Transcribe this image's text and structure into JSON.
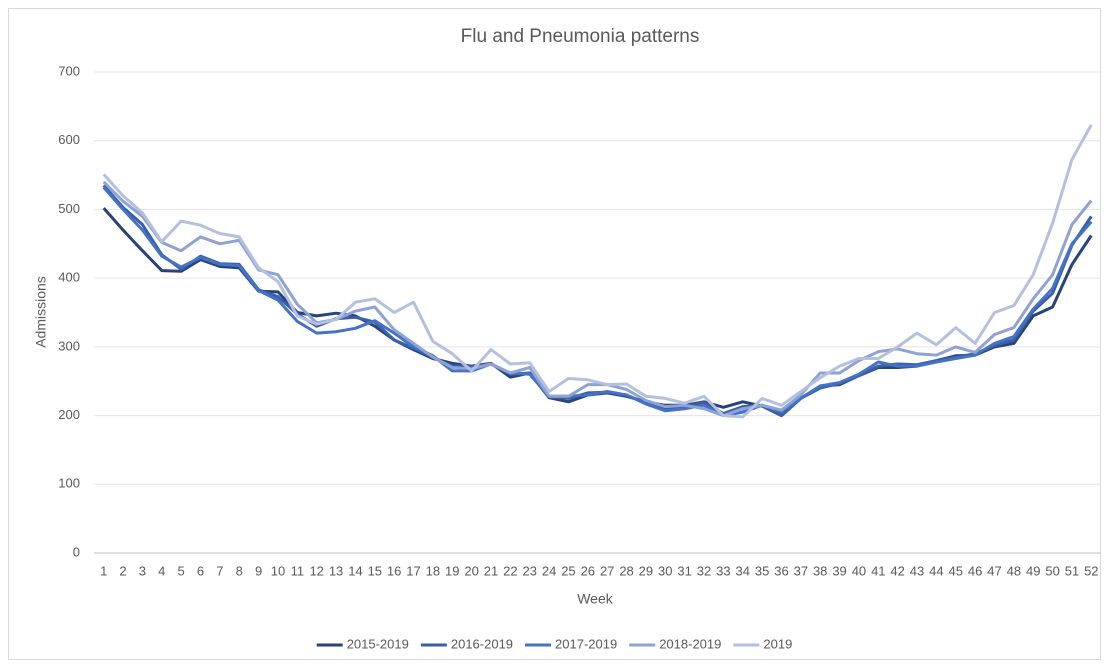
{
  "chart_data": {
    "type": "line",
    "title": "Flu and Pneumonia patterns",
    "x_label": "Week",
    "y_label": "Admissions",
    "categories": [
      1,
      2,
      3,
      4,
      5,
      6,
      7,
      8,
      9,
      10,
      11,
      12,
      13,
      14,
      15,
      16,
      17,
      18,
      19,
      20,
      21,
      22,
      23,
      24,
      25,
      26,
      27,
      28,
      29,
      30,
      31,
      32,
      33,
      34,
      35,
      36,
      37,
      38,
      39,
      40,
      41,
      42,
      43,
      44,
      45,
      46,
      47,
      48,
      49,
      50,
      51,
      52
    ],
    "ylim": [
      0,
      700
    ],
    "yticks": [
      0,
      100,
      200,
      300,
      400,
      500,
      600,
      700
    ],
    "grid": true,
    "legend": "bottom",
    "series": [
      {
        "name": "2015-2019",
        "color": "#264478",
        "values": [
          502,
          470,
          440,
          411,
          410,
          427,
          417,
          415,
          381,
          380,
          350,
          345,
          349,
          345,
          330,
          310,
          296,
          283,
          276,
          272,
          276,
          256,
          262,
          226,
          220,
          230,
          233,
          228,
          220,
          215,
          215,
          220,
          212,
          220,
          214,
          200,
          225,
          243,
          245,
          258,
          270,
          270,
          272,
          280,
          287,
          288,
          300,
          305,
          345,
          358,
          420,
          462
        ]
      },
      {
        "name": "2016-2019",
        "color": "#3a5fa8",
        "values": [
          535,
          503,
          478,
          434,
          413,
          432,
          421,
          420,
          383,
          373,
          348,
          330,
          341,
          343,
          336,
          310,
          298,
          285,
          272,
          272,
          275,
          260,
          262,
          227,
          225,
          233,
          234,
          230,
          218,
          210,
          213,
          219,
          203,
          213,
          215,
          200,
          225,
          240,
          247,
          258,
          272,
          275,
          274,
          280,
          285,
          290,
          302,
          310,
          352,
          378,
          448,
          490
        ]
      },
      {
        "name": "2017-2019",
        "color": "#4472c4",
        "values": [
          532,
          500,
          470,
          432,
          416,
          430,
          420,
          418,
          382,
          368,
          337,
          320,
          322,
          327,
          338,
          320,
          300,
          287,
          265,
          265,
          275,
          262,
          260,
          228,
          228,
          230,
          235,
          230,
          217,
          207,
          210,
          215,
          200,
          205,
          215,
          205,
          225,
          243,
          248,
          260,
          278,
          272,
          272,
          278,
          283,
          288,
          305,
          315,
          355,
          385,
          450,
          482
        ]
      },
      {
        "name": "2018-2019",
        "color": "#8fa2d4",
        "values": [
          540,
          512,
          490,
          452,
          440,
          460,
          450,
          455,
          412,
          405,
          362,
          335,
          340,
          352,
          358,
          325,
          305,
          285,
          270,
          268,
          275,
          262,
          270,
          228,
          228,
          245,
          245,
          238,
          222,
          213,
          215,
          210,
          200,
          210,
          215,
          208,
          230,
          262,
          262,
          280,
          293,
          297,
          290,
          288,
          300,
          292,
          318,
          328,
          370,
          405,
          478,
          513
        ]
      },
      {
        "name": "2019",
        "color": "#b4c0e0",
        "values": [
          551,
          520,
          495,
          453,
          483,
          477,
          465,
          460,
          415,
          395,
          345,
          333,
          340,
          365,
          370,
          350,
          365,
          308,
          290,
          265,
          296,
          275,
          277,
          235,
          254,
          252,
          245,
          246,
          228,
          225,
          218,
          228,
          200,
          198,
          225,
          215,
          235,
          255,
          272,
          283,
          283,
          300,
          320,
          303,
          328,
          305,
          350,
          360,
          405,
          480,
          573,
          623
        ]
      }
    ]
  }
}
